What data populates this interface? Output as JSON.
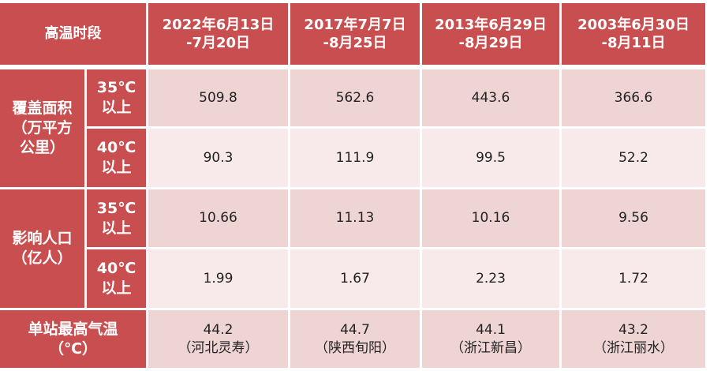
{
  "table": {
    "header": {
      "label": "高温时段",
      "columns": [
        [
          "2022年6月13日",
          "-7月20日"
        ],
        [
          "2017年7月7日",
          "-8月25日"
        ],
        [
          "2013年6月29日",
          "-8月29日"
        ],
        [
          "2003年6月30日",
          "-8月11日"
        ]
      ]
    },
    "groups": [
      {
        "label": [
          "覆盖面积",
          "（万平方",
          "公里）"
        ],
        "rows": [
          {
            "sub": [
              "35℃",
              "以上"
            ],
            "values": [
              [
                "509.8"
              ],
              [
                "562.6"
              ],
              [
                "443.6"
              ],
              [
                "366.6"
              ]
            ]
          },
          {
            "sub": [
              "40℃",
              "以上"
            ],
            "values": [
              [
                "90.3"
              ],
              [
                "111.9"
              ],
              [
                "99.5"
              ],
              [
                "52.2"
              ]
            ]
          }
        ]
      },
      {
        "label": [
          "影响人口",
          "（亿人）"
        ],
        "rows": [
          {
            "sub": [
              "35℃",
              "以上"
            ],
            "values": [
              [
                "10.66"
              ],
              [
                "11.13"
              ],
              [
                "10.16"
              ],
              [
                "9.56"
              ]
            ]
          },
          {
            "sub": [
              "40℃",
              "以上"
            ],
            "values": [
              [
                "1.99"
              ],
              [
                "1.67"
              ],
              [
                "2.23"
              ],
              [
                "1.72"
              ]
            ]
          }
        ]
      },
      {
        "label": [
          "单站最高气温",
          "（℃）"
        ],
        "rows": [
          {
            "values": [
              [
                "44.2",
                "（河北灵寿）"
              ],
              [
                "44.7",
                "（陕西旬阳）"
              ],
              [
                "44.1",
                "（浙江新昌）"
              ],
              [
                "43.2",
                "（浙江丽水）"
              ]
            ]
          }
        ]
      }
    ]
  }
}
